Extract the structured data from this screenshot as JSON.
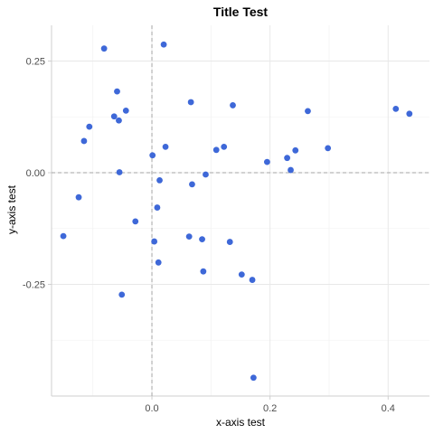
{
  "chart_data": {
    "type": "scatter",
    "title": "Title Test",
    "xlabel": "x-axis test",
    "ylabel": "y-axis test",
    "xlim": [
      -0.17,
      0.47
    ],
    "ylim": [
      -0.5,
      0.33
    ],
    "xticks": [
      0.0,
      0.2,
      0.4
    ],
    "xtick_labels": [
      "0.0",
      "0.2",
      "0.4"
    ],
    "yticks": [
      0.25,
      0.0,
      -0.25
    ],
    "ytick_labels": [
      "0.25",
      "0.00",
      "-0.25"
    ],
    "grid": true,
    "reference_lines": {
      "x": 0,
      "y": 0,
      "style": "dashed"
    },
    "point_color": "#3e68d8",
    "points": [
      {
        "x": -0.15,
        "y": -0.142
      },
      {
        "x": -0.124,
        "y": -0.055
      },
      {
        "x": -0.115,
        "y": 0.071
      },
      {
        "x": -0.106,
        "y": 0.103
      },
      {
        "x": -0.081,
        "y": 0.278
      },
      {
        "x": -0.064,
        "y": 0.126
      },
      {
        "x": -0.059,
        "y": 0.182
      },
      {
        "x": -0.056,
        "y": 0.117
      },
      {
        "x": -0.055,
        "y": 0.001
      },
      {
        "x": -0.051,
        "y": -0.273
      },
      {
        "x": -0.044,
        "y": 0.139
      },
      {
        "x": -0.028,
        "y": -0.109
      },
      {
        "x": 0.001,
        "y": 0.039
      },
      {
        "x": 0.004,
        "y": -0.154
      },
      {
        "x": 0.009,
        "y": -0.078
      },
      {
        "x": 0.011,
        "y": -0.201
      },
      {
        "x": 0.013,
        "y": -0.017
      },
      {
        "x": 0.02,
        "y": 0.287
      },
      {
        "x": 0.023,
        "y": 0.058
      },
      {
        "x": 0.066,
        "y": 0.158
      },
      {
        "x": 0.063,
        "y": -0.143
      },
      {
        "x": 0.068,
        "y": -0.026
      },
      {
        "x": 0.085,
        "y": -0.149
      },
      {
        "x": 0.087,
        "y": -0.221
      },
      {
        "x": 0.091,
        "y": -0.004
      },
      {
        "x": 0.109,
        "y": 0.051
      },
      {
        "x": 0.122,
        "y": 0.058
      },
      {
        "x": 0.132,
        "y": -0.155
      },
      {
        "x": 0.137,
        "y": 0.151
      },
      {
        "x": 0.152,
        "y": -0.228
      },
      {
        "x": 0.17,
        "y": -0.24
      },
      {
        "x": 0.172,
        "y": -0.459
      },
      {
        "x": 0.195,
        "y": 0.024
      },
      {
        "x": 0.229,
        "y": 0.033
      },
      {
        "x": 0.235,
        "y": 0.006
      },
      {
        "x": 0.243,
        "y": 0.05
      },
      {
        "x": 0.264,
        "y": 0.138
      },
      {
        "x": 0.298,
        "y": 0.055
      },
      {
        "x": 0.413,
        "y": 0.143
      },
      {
        "x": 0.436,
        "y": 0.132
      }
    ]
  }
}
